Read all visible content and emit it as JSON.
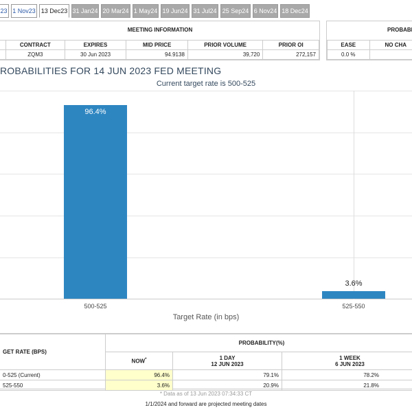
{
  "tabs": [
    "23",
    "1 Nov23",
    "13 Dec23",
    "31 Jan24",
    "20 Mar24",
    "1 May24",
    "19 Jun24",
    "31 Jul24",
    "25 Sep24",
    "6 Nov24",
    "18 Dec24"
  ],
  "meeting_info": {
    "section_title": "MEETING INFORMATION",
    "headers": [
      "CONTRACT",
      "EXPIRES",
      "MID PRICE",
      "PRIOR VOLUME",
      "PRIOR OI"
    ],
    "row": [
      "ZQM3",
      "30 Jun 2023",
      "94.9138",
      "39,720",
      "272,157"
    ]
  },
  "probability_panel": {
    "section_title": "PROBABI",
    "headers": [
      "EASE",
      "NO CHA"
    ],
    "row": [
      "0.0 %",
      ""
    ]
  },
  "chart_data": {
    "type": "bar",
    "title": "ROBABILITIES FOR 14 JUN 2023 FED MEETING",
    "subtitle": "Current target rate is 500-525",
    "categories": [
      "500-525",
      "525-550"
    ],
    "values": [
      96.4,
      3.6
    ],
    "value_labels": [
      "96.4%",
      "3.6%"
    ],
    "xlabel": "Target Rate (in bps)",
    "ylabel": "",
    "ylim": [
      0,
      100
    ],
    "grid": true,
    "bar_color": "#2e86c1"
  },
  "prob_table": {
    "target_header": "GET RATE (BPS)",
    "prob_header": "PROBABILITY(%)",
    "col_now": "NOW",
    "col_now_mark": "*",
    "col_1day": "1 DAY",
    "col_1day_date": "12 JUN 2023",
    "col_1week": "1 WEEK",
    "col_1week_date": "6 JUN 2023",
    "rows": [
      {
        "rate": "0-525 (Current)",
        "now": "96.4%",
        "day": "79.1%",
        "week": "78.2%"
      },
      {
        "rate": "525-550",
        "now": "3.6%",
        "day": "20.9%",
        "week": "21.8%"
      }
    ]
  },
  "footer_note": "* Data as of 13 Jun 2023 07:34:33 CT",
  "footer_projection": "1/1/2024 and forward are projected meeting dates"
}
